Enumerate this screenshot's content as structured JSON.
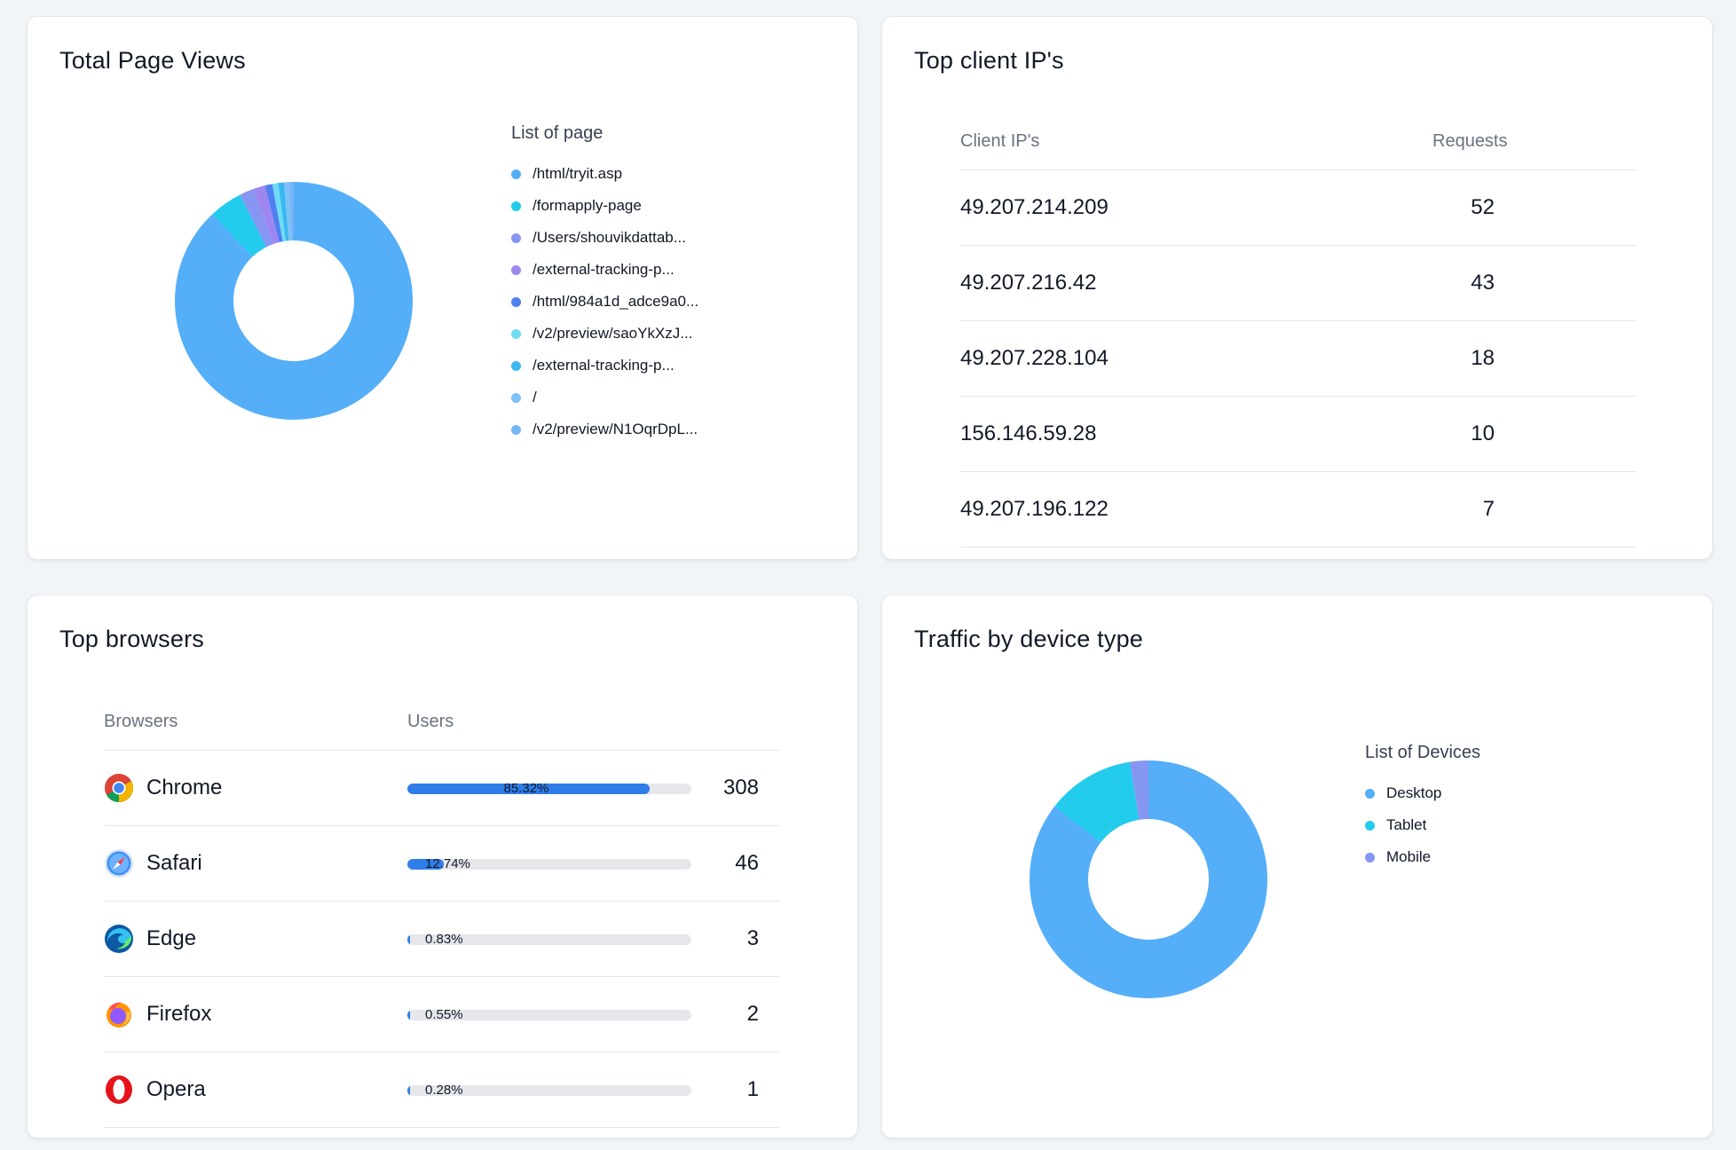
{
  "page_views": {
    "title": "Total Page Views",
    "legend_title": "List of page",
    "chart_data": {
      "type": "pie",
      "title": "",
      "categories": [
        "/html/tryit.asp",
        "/formapply-page",
        "/Users/shouvikdattab...",
        "/external-tracking-p...",
        "/html/984a1d_adce9a0...",
        "/v2/preview/saoYkXzJ...",
        "/external-tracking-p...",
        "/",
        "/v2/preview/N1OqrDpL..."
      ],
      "values": [
        88.0,
        4.5,
        2.0,
        1.6,
        1.0,
        0.8,
        0.8,
        0.7,
        0.6
      ],
      "colors": [
        "#54aef8",
        "#23cbec",
        "#8696f3",
        "#9e86f1",
        "#4f7ff0",
        "#6fdcf5",
        "#3bb8ef",
        "#7cc1f8",
        "#76b6f6"
      ],
      "legend": "right"
    }
  },
  "client_ips": {
    "title": "Top client IP's",
    "col_ip": "Client IP's",
    "col_requests": "Requests",
    "rows": [
      {
        "ip": "49.207.214.209",
        "requests": "52"
      },
      {
        "ip": "49.207.216.42",
        "requests": "43"
      },
      {
        "ip": "49.207.228.104",
        "requests": "18"
      },
      {
        "ip": "156.146.59.28",
        "requests": "10"
      },
      {
        "ip": "49.207.196.122",
        "requests": "7"
      }
    ]
  },
  "browsers": {
    "title": "Top browsers",
    "col_browser": "Browsers",
    "col_users": "Users",
    "rows": [
      {
        "name": "Chrome",
        "icon": "chrome-icon",
        "pct_label": "85.32%",
        "pct": 85.32,
        "users": "308"
      },
      {
        "name": "Safari",
        "icon": "safari-icon",
        "pct_label": "12.74%",
        "pct": 12.74,
        "users": "46"
      },
      {
        "name": "Edge",
        "icon": "edge-icon",
        "pct_label": "0.83%",
        "pct": 0.83,
        "users": "3"
      },
      {
        "name": "Firefox",
        "icon": "firefox-icon",
        "pct_label": "0.55%",
        "pct": 0.55,
        "users": "2"
      },
      {
        "name": "Opera",
        "icon": "opera-icon",
        "pct_label": "0.28%",
        "pct": 0.28,
        "users": "1"
      }
    ],
    "bar_color": "#2f7de9",
    "track_color": "#e5e7eb"
  },
  "devices": {
    "title": "Traffic by device type",
    "legend_title": "List of Devices",
    "chart_data": {
      "type": "pie",
      "title": "",
      "categories": [
        "Desktop",
        "Tablet",
        "Mobile"
      ],
      "values": [
        85.5,
        12.0,
        2.5
      ],
      "colors": [
        "#54aef8",
        "#23cbec",
        "#8696f3"
      ],
      "legend": "right"
    }
  }
}
